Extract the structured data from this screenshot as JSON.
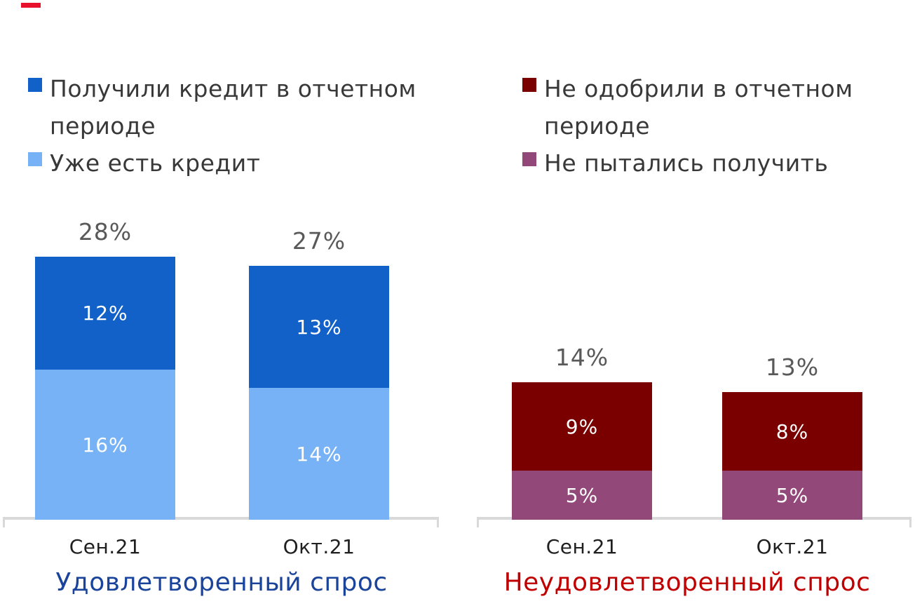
{
  "brand": {
    "color": "#e8112d"
  },
  "axis": {
    "line_color": "#d9d9d9"
  },
  "chart_data": [
    {
      "type": "bar",
      "stacked": true,
      "title": "Удовлетворенный спрос",
      "title_color": "#1a449c",
      "categories": [
        "Сен.21",
        "Окт.21"
      ],
      "series": [
        {
          "name": "Получили кредит в отчетном периоде",
          "color": "#1161c9",
          "values": [
            12,
            13
          ],
          "labels": [
            "12%",
            "13%"
          ]
        },
        {
          "name": "Уже есть кредит",
          "color": "#76b2f5",
          "values": [
            16,
            14
          ],
          "labels": [
            "16%",
            "14%"
          ]
        }
      ],
      "totals": [
        28,
        27
      ],
      "total_labels": [
        "28%",
        "27%"
      ],
      "total_label_color": "#595959",
      "category_label_color": "#1f1f1f",
      "value_label_color": "#ffffff",
      "xlabel": "",
      "ylabel": "",
      "ylim": [
        0,
        30
      ],
      "grid": false,
      "legend_position": "top"
    },
    {
      "type": "bar",
      "stacked": true,
      "title": "Неудовлетворенный спрос",
      "title_color": "#c00000",
      "categories": [
        "Сен.21",
        "Окт.21"
      ],
      "series": [
        {
          "name": "Не одобрили в отчетном периоде",
          "color": "#7a0000",
          "values": [
            9,
            8
          ],
          "labels": [
            "9%",
            "8%"
          ]
        },
        {
          "name": "Не пытались получить",
          "color": "#924878",
          "values": [
            5,
            5
          ],
          "labels": [
            "5%",
            "5%"
          ]
        }
      ],
      "totals": [
        14,
        13
      ],
      "total_labels": [
        "14%",
        "13%"
      ],
      "total_label_color": "#595959",
      "category_label_color": "#1f1f1f",
      "value_label_color": "#ffffff",
      "xlabel": "",
      "ylabel": "",
      "ylim": [
        0,
        30
      ],
      "grid": false,
      "legend_position": "top"
    }
  ]
}
